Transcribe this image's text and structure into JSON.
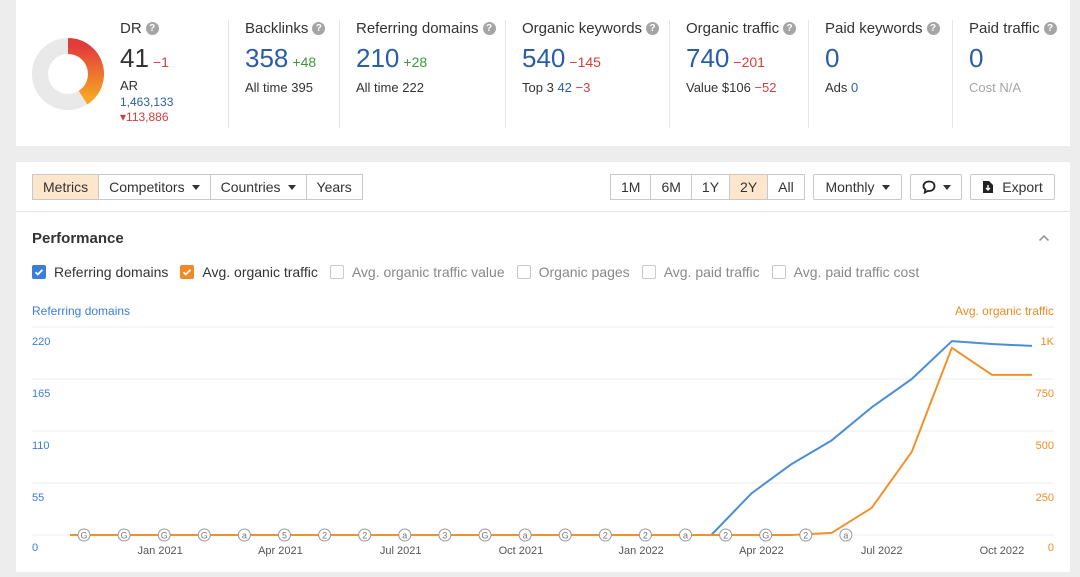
{
  "metrics": {
    "dr": {
      "label": "DR",
      "value": "41",
      "delta": "−1",
      "sub_label": "AR",
      "ar_value": "1,463,133",
      "ar_delta": "113,886"
    },
    "backlinks": {
      "label": "Backlinks",
      "value": "358",
      "delta": "+48",
      "sub_label": "All time",
      "sub_value": "395"
    },
    "ref_domains": {
      "label": "Referring domains",
      "value": "210",
      "delta": "+28",
      "sub_label": "All time",
      "sub_value": "222"
    },
    "org_keywords": {
      "label": "Organic keywords",
      "value": "540",
      "delta": "−145",
      "sub_label": "Top 3",
      "sub_value": "42",
      "sub_delta": "−3"
    },
    "org_traffic": {
      "label": "Organic traffic",
      "value": "740",
      "delta": "−201",
      "sub_label": "Value",
      "sub_value": "$106",
      "sub_delta": "−52"
    },
    "paid_keywords": {
      "label": "Paid keywords",
      "value": "0",
      "sub_label": "Ads",
      "sub_value": "0"
    },
    "paid_traffic": {
      "label": "Paid traffic",
      "value": "0",
      "sub_label": "Cost",
      "sub_value": "N/A"
    }
  },
  "toolbar": {
    "tabs": [
      "Metrics",
      "Competitors",
      "Countries",
      "Years"
    ],
    "ranges": [
      "1M",
      "6M",
      "1Y",
      "2Y",
      "All"
    ],
    "active_range": "2Y",
    "interval": "Monthly",
    "export": "Export"
  },
  "performance": {
    "title": "Performance",
    "legend": [
      "Referring domains",
      "Avg. organic traffic",
      "Avg. organic traffic value",
      "Organic pages",
      "Avg. paid traffic",
      "Avg. paid traffic cost"
    ],
    "left_axis_title": "Referring domains",
    "right_axis_title": "Avg. organic traffic"
  },
  "chart_data": {
    "type": "line",
    "x": [
      "2020-11",
      "2020-12",
      "2021-01",
      "2021-02",
      "2021-03",
      "2021-04",
      "2021-05",
      "2021-06",
      "2021-07",
      "2021-08",
      "2021-09",
      "2021-10",
      "2021-11",
      "2021-12",
      "2022-01",
      "2022-02",
      "2022-03",
      "2022-04",
      "2022-05",
      "2022-06",
      "2022-07",
      "2022-08",
      "2022-09",
      "2022-10",
      "2022-11"
    ],
    "x_tick_labels": [
      "Jan 2021",
      "Apr 2021",
      "Jul 2021",
      "Oct 2021",
      "Jan 2022",
      "Apr 2022",
      "Jul 2022",
      "Oct 2022"
    ],
    "y_left_ticks": [
      "0",
      "55",
      "110",
      "165",
      "220"
    ],
    "y_right_ticks": [
      "0",
      "250",
      "500",
      "750",
      "1K"
    ],
    "ylim_left": [
      0,
      220
    ],
    "ylim_right": [
      0,
      1000
    ],
    "series": [
      {
        "name": "Referring domains",
        "axis": "left",
        "color": "#4a8fd4",
        "values": [
          0,
          0,
          0,
          0,
          0,
          0,
          0,
          0,
          0,
          0,
          0,
          0,
          0,
          0,
          0,
          0,
          0,
          44,
          75,
          100,
          135,
          165,
          205,
          202,
          200
        ]
      },
      {
        "name": "Avg. organic traffic",
        "axis": "right",
        "color": "#f0922c",
        "values": [
          0,
          0,
          0,
          0,
          0,
          0,
          0,
          0,
          0,
          0,
          0,
          0,
          0,
          0,
          0,
          0,
          0,
          0,
          0,
          10,
          130,
          400,
          900,
          770,
          770
        ]
      }
    ],
    "annotations": [
      "G",
      "G",
      "G",
      "G",
      "a",
      "5",
      "2",
      "2",
      "a",
      "3",
      "G",
      "a",
      "G",
      "2",
      "2",
      "a",
      "2",
      "G",
      "2",
      "a"
    ]
  }
}
